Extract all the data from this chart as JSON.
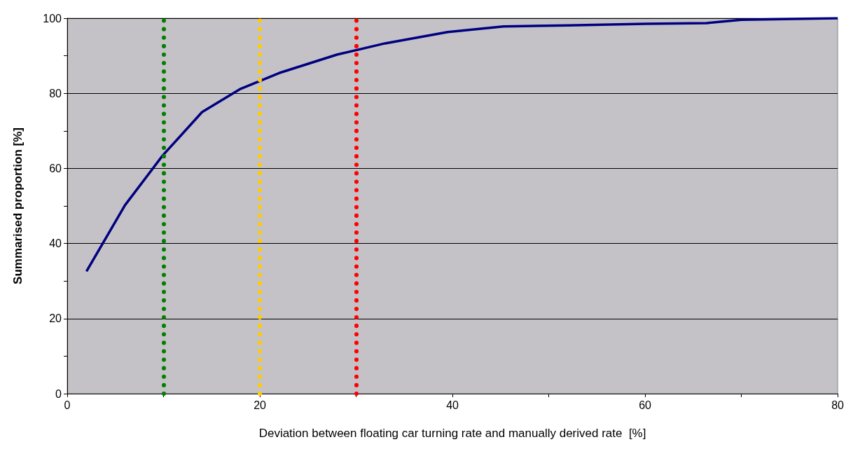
{
  "chart_data": {
    "type": "line",
    "xlabel": "Deviation between floating car turning rate and manually derived rate  [%]",
    "ylabel": "Summarised proportion [%]",
    "xlim": [
      0,
      80
    ],
    "xticks": [
      0,
      20,
      40,
      60,
      80
    ],
    "ylim": [
      0,
      100
    ],
    "yticks": [
      0,
      20,
      40,
      60,
      80,
      100
    ],
    "grid": "y",
    "marker": "none",
    "line_style": "solid",
    "series": [
      {
        "color": "#000080",
        "x": [
          2,
          6,
          9.9,
          14,
          18,
          22,
          28,
          33,
          39.5,
          45.3,
          52,
          60,
          66.4,
          70,
          80
        ],
        "values": [
          32.6,
          50.2,
          63.4,
          75,
          81.2,
          85.4,
          90.3,
          93.3,
          96.3,
          97.8,
          98.1,
          98.5,
          98.7,
          99.6,
          100
        ]
      }
    ],
    "ref_lines": [
      {
        "axis": "x",
        "value": 10,
        "color": "#008000",
        "line_style": "dotted"
      },
      {
        "axis": "x",
        "value": 20,
        "color": "#ffcc00",
        "line_style": "dotted"
      },
      {
        "axis": "x",
        "value": 30,
        "color": "#ff0000",
        "line_style": "dotted"
      }
    ]
  }
}
